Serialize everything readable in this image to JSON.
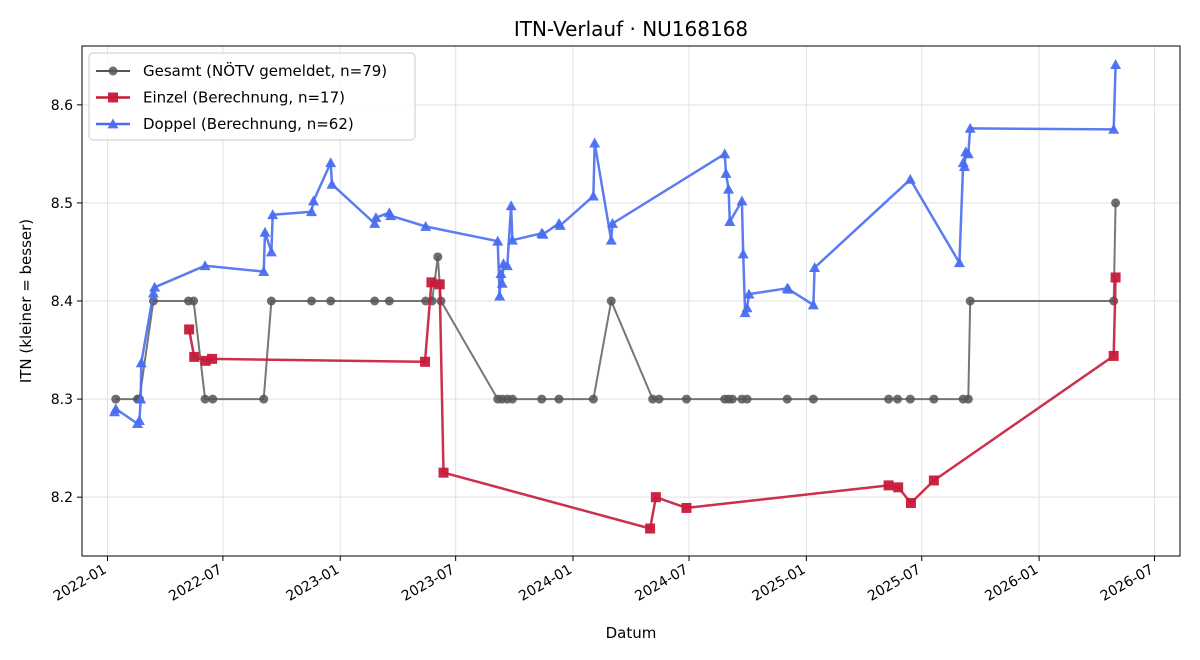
{
  "chart_data": {
    "type": "line",
    "title": "ITN-Verlauf · NU168168",
    "xlabel": "Datum",
    "ylabel": "ITN  (kleiner = besser)",
    "xlim": [
      "2021-11-22",
      "2026-08-10"
    ],
    "ylim": [
      8.14,
      8.66
    ],
    "x_ticks": [
      "2022-01",
      "2022-07",
      "2023-01",
      "2023-07",
      "2024-01",
      "2024-07",
      "2025-01",
      "2025-07",
      "2026-01",
      "2026-07"
    ],
    "y_ticks": [
      "8.2",
      "8.3",
      "8.4",
      "8.5",
      "8.6"
    ],
    "grid": true,
    "legend_position": "upper-left",
    "series": [
      {
        "name": "Gesamt (NÖTV gemeldet, n=79)",
        "color": "#555555",
        "marker": "circle",
        "points": [
          [
            "2022-01-14",
            8.3
          ],
          [
            "2022-02-17",
            8.3
          ],
          [
            "2022-02-20",
            8.3
          ],
          [
            "2022-03-14",
            8.4
          ],
          [
            "2022-05-08",
            8.4
          ],
          [
            "2022-05-16",
            8.4
          ],
          [
            "2022-06-03",
            8.3
          ],
          [
            "2022-06-15",
            8.3
          ],
          [
            "2022-09-03",
            8.3
          ],
          [
            "2022-09-15",
            8.4
          ],
          [
            "2022-11-17",
            8.4
          ],
          [
            "2022-12-17",
            8.4
          ],
          [
            "2023-02-24",
            8.4
          ],
          [
            "2023-03-19",
            8.4
          ],
          [
            "2023-05-15",
            8.4
          ],
          [
            "2023-05-25",
            8.4
          ],
          [
            "2023-06-03",
            8.445
          ],
          [
            "2023-06-08",
            8.4
          ],
          [
            "2023-09-05",
            8.3
          ],
          [
            "2023-09-12",
            8.3
          ],
          [
            "2023-09-20",
            8.3
          ],
          [
            "2023-09-28",
            8.3
          ],
          [
            "2023-11-13",
            8.3
          ],
          [
            "2023-12-10",
            8.3
          ],
          [
            "2024-02-02",
            8.3
          ],
          [
            "2024-03-01",
            8.4
          ],
          [
            "2024-05-05",
            8.3
          ],
          [
            "2024-05-15",
            8.3
          ],
          [
            "2024-06-27",
            8.3
          ],
          [
            "2024-08-26",
            8.3
          ],
          [
            "2024-09-01",
            8.3
          ],
          [
            "2024-09-07",
            8.3
          ],
          [
            "2024-09-22",
            8.3
          ],
          [
            "2024-09-30",
            8.3
          ],
          [
            "2024-12-02",
            8.3
          ],
          [
            "2025-01-12",
            8.3
          ],
          [
            "2025-05-10",
            8.3
          ],
          [
            "2025-05-24",
            8.3
          ],
          [
            "2025-06-13",
            8.3
          ],
          [
            "2025-07-20",
            8.3
          ],
          [
            "2025-09-04",
            8.3
          ],
          [
            "2025-09-12",
            8.3
          ],
          [
            "2025-09-15",
            8.4
          ],
          [
            "2026-04-28",
            8.4
          ],
          [
            "2026-05-01",
            8.5
          ]
        ]
      },
      {
        "name": "Einzel (Berechnung, n=17)",
        "color": "#c71a3a",
        "marker": "square",
        "points": [
          [
            "2022-05-09",
            8.371
          ],
          [
            "2022-05-17",
            8.343
          ],
          [
            "2022-06-04",
            8.339
          ],
          [
            "2022-06-14",
            8.341
          ],
          [
            "2023-05-14",
            8.338
          ],
          [
            "2023-05-24",
            8.419
          ],
          [
            "2023-06-06",
            8.417
          ],
          [
            "2023-06-12",
            8.225
          ],
          [
            "2024-05-01",
            8.168
          ],
          [
            "2024-05-10",
            8.2
          ],
          [
            "2024-06-27",
            8.189
          ],
          [
            "2025-05-10",
            8.212
          ],
          [
            "2025-05-25",
            8.21
          ],
          [
            "2025-06-14",
            8.194
          ],
          [
            "2025-07-20",
            8.217
          ],
          [
            "2026-04-28",
            8.344
          ],
          [
            "2026-05-01",
            8.424
          ]
        ]
      },
      {
        "name": "Doppel (Berechnung, n=62)",
        "color": "#4a6ef0",
        "marker": "triangle",
        "points": [
          [
            "2022-01-12",
            8.287
          ],
          [
            "2022-01-14",
            8.29
          ],
          [
            "2022-02-17",
            8.275
          ],
          [
            "2022-02-20",
            8.278
          ],
          [
            "2022-02-22",
            8.3
          ],
          [
            "2022-02-23",
            8.337
          ],
          [
            "2022-03-14",
            8.408
          ],
          [
            "2022-03-16",
            8.414
          ],
          [
            "2022-06-03",
            8.436
          ],
          [
            "2022-09-03",
            8.43
          ],
          [
            "2022-09-05",
            8.47
          ],
          [
            "2022-09-15",
            8.45
          ],
          [
            "2022-09-17",
            8.488
          ],
          [
            "2022-11-17",
            8.491
          ],
          [
            "2022-11-20",
            8.502
          ],
          [
            "2022-12-17",
            8.541
          ],
          [
            "2022-12-19",
            8.519
          ],
          [
            "2023-02-24",
            8.479
          ],
          [
            "2023-02-26",
            8.485
          ],
          [
            "2023-03-19",
            8.49
          ],
          [
            "2023-03-21",
            8.487
          ],
          [
            "2023-05-15",
            8.476
          ],
          [
            "2023-09-05",
            8.461
          ],
          [
            "2023-09-08",
            8.405
          ],
          [
            "2023-09-10",
            8.428
          ],
          [
            "2023-09-12",
            8.418
          ],
          [
            "2023-09-14",
            8.438
          ],
          [
            "2023-09-20",
            8.436
          ],
          [
            "2023-09-26",
            8.497
          ],
          [
            "2023-09-28",
            8.462
          ],
          [
            "2023-11-13",
            8.469
          ],
          [
            "2023-11-15",
            8.468
          ],
          [
            "2023-12-10",
            8.479
          ],
          [
            "2023-12-12",
            8.477
          ],
          [
            "2024-02-02",
            8.507
          ],
          [
            "2024-02-04",
            8.561
          ],
          [
            "2024-03-01",
            8.462
          ],
          [
            "2024-03-03",
            8.479
          ],
          [
            "2024-08-26",
            8.55
          ],
          [
            "2024-08-28",
            8.53
          ],
          [
            "2024-09-01",
            8.514
          ],
          [
            "2024-09-03",
            8.481
          ],
          [
            "2024-09-22",
            8.502
          ],
          [
            "2024-09-24",
            8.448
          ],
          [
            "2024-09-27",
            8.388
          ],
          [
            "2024-09-30",
            8.393
          ],
          [
            "2024-10-03",
            8.407
          ],
          [
            "2024-12-02",
            8.413
          ],
          [
            "2024-12-04",
            8.412
          ],
          [
            "2025-01-12",
            8.396
          ],
          [
            "2025-01-14",
            8.434
          ],
          [
            "2025-06-13",
            8.524
          ],
          [
            "2025-08-29",
            8.439
          ],
          [
            "2025-09-04",
            8.541
          ],
          [
            "2025-09-06",
            8.537
          ],
          [
            "2025-09-08",
            8.552
          ],
          [
            "2025-09-12",
            8.55
          ],
          [
            "2025-09-15",
            8.576
          ],
          [
            "2026-04-28",
            8.575
          ],
          [
            "2026-05-01",
            8.641
          ]
        ]
      }
    ]
  }
}
